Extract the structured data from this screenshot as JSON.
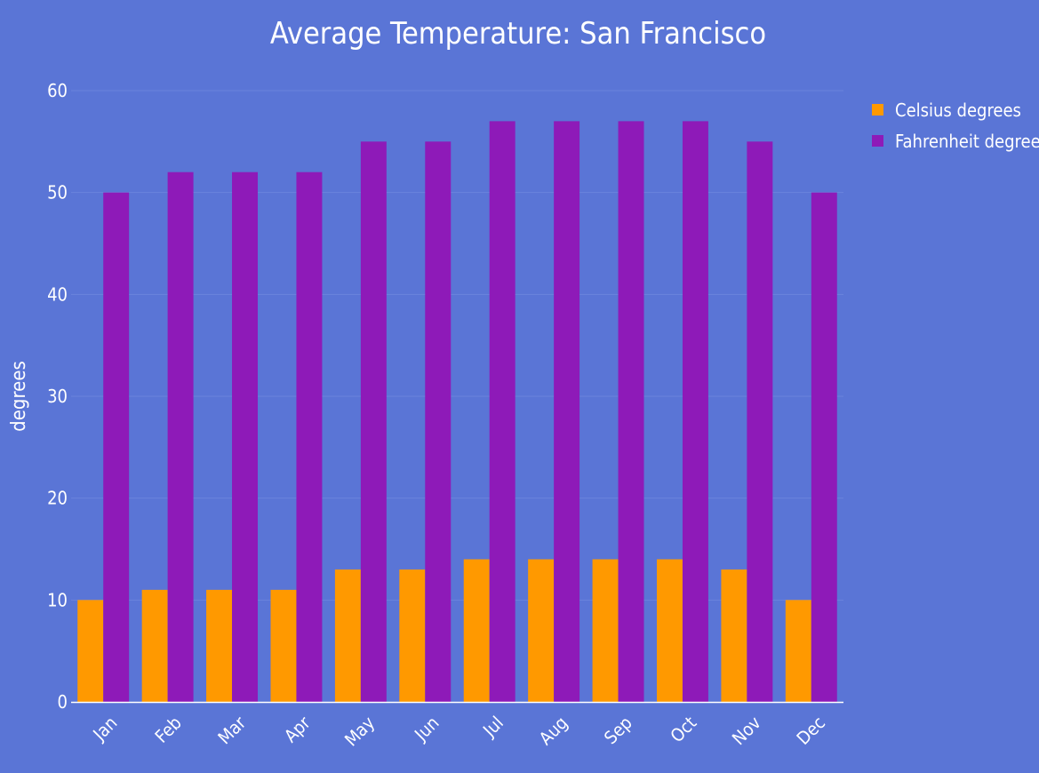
{
  "chart_data": {
    "type": "bar",
    "title": "Average Temperature: San Francisco",
    "xlabel": "",
    "ylabel": "degrees",
    "categories": [
      "Jan",
      "Feb",
      "Mar",
      "Apr",
      "May",
      "Jun",
      "Jul",
      "Aug",
      "Sep",
      "Oct",
      "Nov",
      "Dec"
    ],
    "series": [
      {
        "name": "Celsius degrees",
        "color": "#ff9900",
        "values": [
          10,
          11,
          11,
          11,
          13,
          13,
          14,
          14,
          14,
          14,
          13,
          10
        ]
      },
      {
        "name": "Fahrenheit degrees",
        "color": "#8e1ab8",
        "values": [
          50,
          52,
          52,
          52,
          55,
          55,
          57,
          57,
          57,
          57,
          55,
          50
        ]
      }
    ],
    "ylim": [
      0,
      60
    ],
    "yticks": [
      0,
      10,
      20,
      30,
      40,
      50,
      60
    ],
    "grid": true,
    "legend_position": "top-right",
    "background": "#5a75d6",
    "grid_color": "#6b84dc"
  }
}
